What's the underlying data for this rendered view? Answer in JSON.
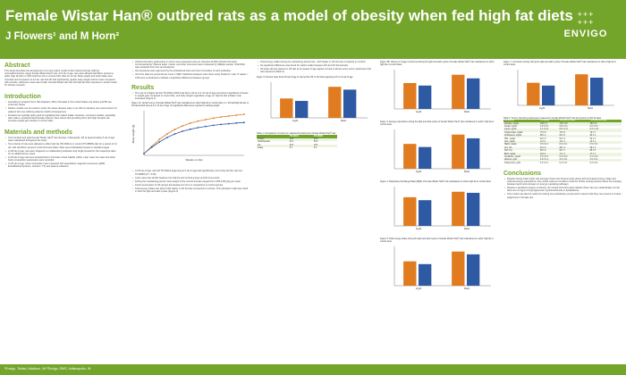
{
  "header": {
    "title": "Female Wistar Han® outbred rats as a model of obesity when fed high fat diets",
    "authors": "J Flowers¹ and M Horn²",
    "logo_text": "ENVIGO",
    "logo_dots": "+++\n+++"
  },
  "abstract": {
    "heading": "Abstract",
    "text": "This study describes the development of a new rodent model of diet induced obesity utilizing normoalbuminemic, target female Wistar Han® rats. At 5 wk of age, rats were allowed ad libitum access to either high fat (HF) or 60% kcal from fat or control (CD) diets for 12 wk. Body weight and food intake were recorded and compared. At 12 wk, rats fed HF had significantly greater body weight and fat mass compared with controls, while lean mass was similar. Female Wistar Han rats fed high fat diets represent a useful model for obesity research."
  },
  "introduction": {
    "heading": "Introduction",
    "bullets": [
      "According to research from NIH statistics, 36% of females in the United States are obese and 8% are extremely obese",
      "Rodent models can be useful to study the obese disease state in an effort to develop new interventions for patients who are suffering adverse health consequences",
      "Females are typically quite good at regulating their caloric intake. However, numerous studies, especially with male or ovariectomized female rodents, have shown that providing them with high fat diets can increase weight gain relative to control diets"
    ]
  },
  "methods": {
    "heading": "Materials and methods",
    "bullets": [
      "One hundred and eight female Wistar Han® rats (Envigo, Indianapolis, IN) at approximately 5 wk of age were maintained throughout the study",
      "Two cohorts of rats were allowed to either high fat (TD.06414) or control (TD.08806) diet for a period of 14 wk, with ad libitum access to both food and water. Rats were individually housed in standard cages",
      "At 28 wk of age, rats were shipped to a collaborating institution and single housed for the respective diets for an additional one week",
      "At 33 wk of age rats were anesthetized in Formalin-mixed Gabble (USA). Lean mass, fat mass and other body composition parameters were recorded",
      "At 33 wk of age, body composition was measured with quantitative magnetic resonance (QMR, EchoMedical Systems, Houston, TX) and plasma collected"
    ]
  },
  "col2": {
    "text_top": "Clinical chemistry parameters in serum were assessed using an Olympus AU640 Clinical Chemistry Immunoanalyzer. Plasma leptin, insulin, and other hormones were measured by Milliplex panels. Total RNA was extracted from liver and analyzed.",
    "text_top2": "All procedures were approved by the Institutional Care and Use Committee of each institution.",
    "text_top3": "All of the data are presented as mean ± SEM. Statistical analyses were done using Student's t-test. P values < 0.05 were considered to indicate a significant difference between groups.",
    "results_heading": "Results",
    "results_p1": "The use of a higher fat diet TD.06414 (60% kcal fat) in HF at 3 or 12 wk of age promoted a significant increase in weight gain compared to control diet, and body weight regardless of age on high fat diet initiation was increased (Figure 1).",
    "fig1_caption": "Figure 1A: Growth curve of female Wistar Han® rats maintained on either high fat or control diets (n = 48 rats/high fat diet or 46 rats/control diet) at 5 or 12 wk of age. No significant differences reported in starting weight.",
    "results_bullets": [
      "At 33 wk of age, rats fed TD.06414 beginning at 5 wk of age had significantly more body fat than rats fed TD.08806 (P < 0.05)",
      "Lean mass was similar between the high fat and control groups at both time points",
      "During the maintaining period, body weight of the control animals ranged from 0.85-0.95 g/kg per week",
      "Food consumption of HF groups decreased over time in comparison to control groups",
      "Total energy intake was about 13% higher in HF fed rats compared to controls. This elevation in EE was noted in both the light and dark cycles (Figure 3)"
    ]
  },
  "chart_data": [
    {
      "type": "line",
      "title": "Figure 1A",
      "xlabel": "Weeks on diet",
      "ylabel": "Body weight (g)",
      "series": [
        {
          "name": "HF",
          "color": "#e07b20",
          "values": [
            110,
            150,
            190,
            220,
            245,
            265,
            280,
            292,
            300,
            308,
            315,
            320,
            325,
            330
          ]
        },
        {
          "name": "CD",
          "color": "#2d5aa3",
          "values": [
            110,
            145,
            175,
            200,
            220,
            235,
            246,
            255,
            262,
            268,
            273,
            277,
            281,
            284
          ]
        }
      ],
      "ylim": [
        100,
        350
      ]
    },
    {
      "type": "bar",
      "title": "Figure 2",
      "categories": [
        "Light",
        "Dark"
      ],
      "series": [
        {
          "name": "HF",
          "color": "#e07b20",
          "values": [
            0.72,
            0.95
          ]
        },
        {
          "name": "CD",
          "color": "#2d5aa3",
          "values": [
            0.65,
            0.85
          ]
        }
      ]
    },
    {
      "type": "bar",
      "title": "Figure 3",
      "categories": [
        "Light",
        "Dark"
      ],
      "series": [
        {
          "name": "HF",
          "color": "#e07b20",
          "values": [
            0.8,
            1.1
          ]
        },
        {
          "name": "CD",
          "color": "#2d5aa3",
          "values": [
            0.7,
            0.98
          ]
        }
      ]
    },
    {
      "type": "bar",
      "title": "Figure 4",
      "categories": [
        "Light",
        "Dark"
      ],
      "series": [
        {
          "name": "HF",
          "color": "#e07b20",
          "values": [
            0.78,
            0.93
          ]
        },
        {
          "name": "CD",
          "color": "#2d5aa3",
          "values": [
            0.7,
            0.9
          ]
        }
      ]
    },
    {
      "type": "bar",
      "title": "Figure 5",
      "categories": [
        "Light",
        "Dark"
      ],
      "series": [
        {
          "name": "HF",
          "color": "#e07b20",
          "values": [
            0.55,
            0.88
          ]
        },
        {
          "name": "CD",
          "color": "#2d5aa3",
          "values": [
            0.48,
            0.8
          ]
        }
      ]
    },
    {
      "type": "bar",
      "title": "Figure 6",
      "categories": [
        "Light",
        "Dark"
      ],
      "series": [
        {
          "name": "HF",
          "color": "#e07b20",
          "values": [
            0.7,
            0.98
          ]
        },
        {
          "name": "CD",
          "color": "#2d5aa3",
          "values": [
            0.62,
            0.9
          ]
        }
      ]
    }
  ],
  "col3": {
    "bullets": [
      "Total energy intake during the maintaining period was ~11% higher in HF fed rats compared to controls",
      "No significant difference was found for caloric intake between HF and CD fed animals",
      "33 week old rats started on HF diet at 12 weeks of age appear normal in almost every serum parameter that was assessed (Table 2)"
    ],
    "fig2_caption": "Figure 2B: Volume of oxygen consumed during the light and dark cycles of female Wistar Han® rats maintained on either high fat or control diets.",
    "fig5_caption": "Figure 5: Percent body fat at 33 wk of age in rats fed the HF or CD diet beginning at 5 or 12 wk of age.",
    "table1_caption": "Table 1: Comparison of control vs. adjusted fat diets fed to female Wistar Han® rats"
  },
  "table1": {
    "headers": [
      "",
      "TD.06414",
      "TD.08806"
    ],
    "rows": [
      [
        "Protein",
        "18.3",
        "20.5"
      ],
      [
        "Carbohydrate",
        "21.4",
        "63.9"
      ],
      [
        "Fat",
        "60.3",
        "15.6"
      ],
      [
        "kcal/g",
        "5.1",
        "3.6"
      ]
    ]
  },
  "col4": {
    "fig3_caption": "Figure 3: Energy expenditure during the light and dark cycles of female Wistar Han® rats maintained on either high fat or control diets.",
    "fig4_caption": "Figure 4: Respiratory Exchange Ratio (RER) of female Wistar Han® rats maintained on either high fat or control diets.",
    "fig6_caption": "Figure 6: Total energy intake during the light and dark cycles of female Wistar Han® rats maintained on either high fat or control diets."
  },
  "col5": {
    "fig_caption": "Figure 7: Locomotor activity during the light and dark cycles of female Wistar Han® rats maintained on either high fat or control diets.",
    "table2_caption": "Table 2: Serum chemistry parameters measured in female Wistar Han® rats fed control or high fat diets",
    "conclusions_heading": "Conclusions",
    "conclusions": [
      "Despite having intact leptin and estrogen these rats became quite obese with increased energy intake and reduced energy expenditure; they would make an excellent model for further testing theories about the interplay between leptin and estrogen on energy regulating pathways",
      "Despite a significant degree of obesity, the clinical chemistry data indicate these rats are metabolically normal; there are no signs of hyperglycemia, hyperinsulinemia or dyslipidemia",
      "This model may also be useful for testing new antiobesity compounds to assure that they can prevent or induce weight loss in female rats"
    ]
  },
  "table2": {
    "headers": [
      "Parameter",
      "TD.08806",
      "TD.06414 (5 wk)",
      "TD.06414 (12 wk)"
    ],
    "rows": [
      [
        "Glucose, mg/dL",
        "168 ± 9",
        "179 ± 10",
        "163 ± 6"
      ],
      [
        "Insulin, ng/mL",
        "2.0 ± 0.3",
        "2.8 ± 0.4",
        "2.2 ± 0.3"
      ],
      [
        "Leptin, ng/mL",
        "4.1 ± 0.6",
        "9.5 ± 1.2*",
        "8.3 ± 1.0*"
      ],
      [
        "Triglycerides, mg/dL",
        "75 ± 8",
        "72 ± 6",
        "70 ± 7"
      ],
      [
        "Cholesterol, mg/dL",
        "88 ± 4",
        "92 ± 5",
        "90 ± 4"
      ],
      [
        "HDL, mg/dL",
        "60 ± 3",
        "63 ± 3",
        "62 ± 4"
      ],
      [
        "LDL, mg/dL",
        "12 ± 1",
        "13 ± 1",
        "12 ± 1"
      ],
      [
        "NEFA, mEq/L",
        "0.5 ± 0.1",
        "0.6 ± 0.1",
        "0.5 ± 0.1"
      ],
      [
        "ALT, U/L",
        "35 ± 3",
        "38 ± 4",
        "36 ± 3"
      ],
      [
        "AST, U/L",
        "88 ± 6",
        "92 ± 7",
        "85 ± 5"
      ],
      [
        "BUN, mg/dL",
        "18 ± 1",
        "17 ± 1",
        "17 ± 1"
      ],
      [
        "Creatinine, mg/dL",
        "0.3 ± 0.0",
        "0.3 ± 0.0",
        "0.3 ± 0.0"
      ],
      [
        "Albumin, g/dL",
        "3.9 ± 0.1",
        "4.0 ± 0.1",
        "3.9 ± 0.1"
      ],
      [
        "Total protein, g/dL",
        "6.3 ± 0.1",
        "6.4 ± 0.1",
        "6.3 ± 0.1"
      ]
    ]
  },
  "footer": {
    "text": "¹Envigo, Teklad, Madison, WI   ²Envigo, RMS, Indianapolis, IN"
  }
}
